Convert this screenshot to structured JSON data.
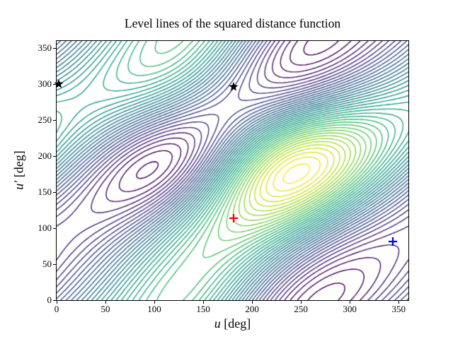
{
  "figure": {
    "background": "#ffffff"
  },
  "chart_data": {
    "type": "contour",
    "title": "Level lines of the squared distance function",
    "xlabel_var": "u",
    "xlabel_unit": "[deg]",
    "ylabel_var": "u′",
    "ylabel_unit": "[deg]",
    "xlim": [
      0,
      360
    ],
    "ylim": [
      0,
      360
    ],
    "xticks": [
      0,
      50,
      100,
      150,
      200,
      250,
      300,
      350
    ],
    "yticks": [
      0,
      50,
      100,
      150,
      200,
      250,
      300,
      350
    ],
    "grid": false,
    "legend": false,
    "n_levels": 40,
    "colormap": "viridis",
    "colormap_stops": [
      "#440154",
      "#482878",
      "#3e4989",
      "#31688e",
      "#26828e",
      "#1f9e89",
      "#35b779",
      "#6ece58",
      "#b5de2b",
      "#fde725"
    ],
    "surface": {
      "model": "squared distance |P1(u) - P2(u')|^2 between points of two inclined orbits",
      "orbit1_radius": "1 - 0.25*cos(u)",
      "orbit2_radius": "1.05 - 0.22*cos(u' - 30deg)",
      "orbit2_inclination_deg": 50,
      "orbit2_node_deg": -90,
      "grid_step_deg": 2
    },
    "maximum_region": {
      "u": 180,
      "v": 115,
      "ring_color": "#e2e318"
    },
    "markers": [
      {
        "name": "black-star-left",
        "symbol": "star",
        "color": "#000000",
        "u": 2,
        "v": 300
      },
      {
        "name": "black-star-center",
        "symbol": "star",
        "color": "#000000",
        "u": 181,
        "v": 296
      },
      {
        "name": "red-plus",
        "symbol": "plus",
        "color": "#ff0000",
        "u": 181,
        "v": 114
      },
      {
        "name": "blue-plus",
        "symbol": "plus",
        "color": "#0000ff",
        "u": 344,
        "v": 81
      }
    ]
  }
}
